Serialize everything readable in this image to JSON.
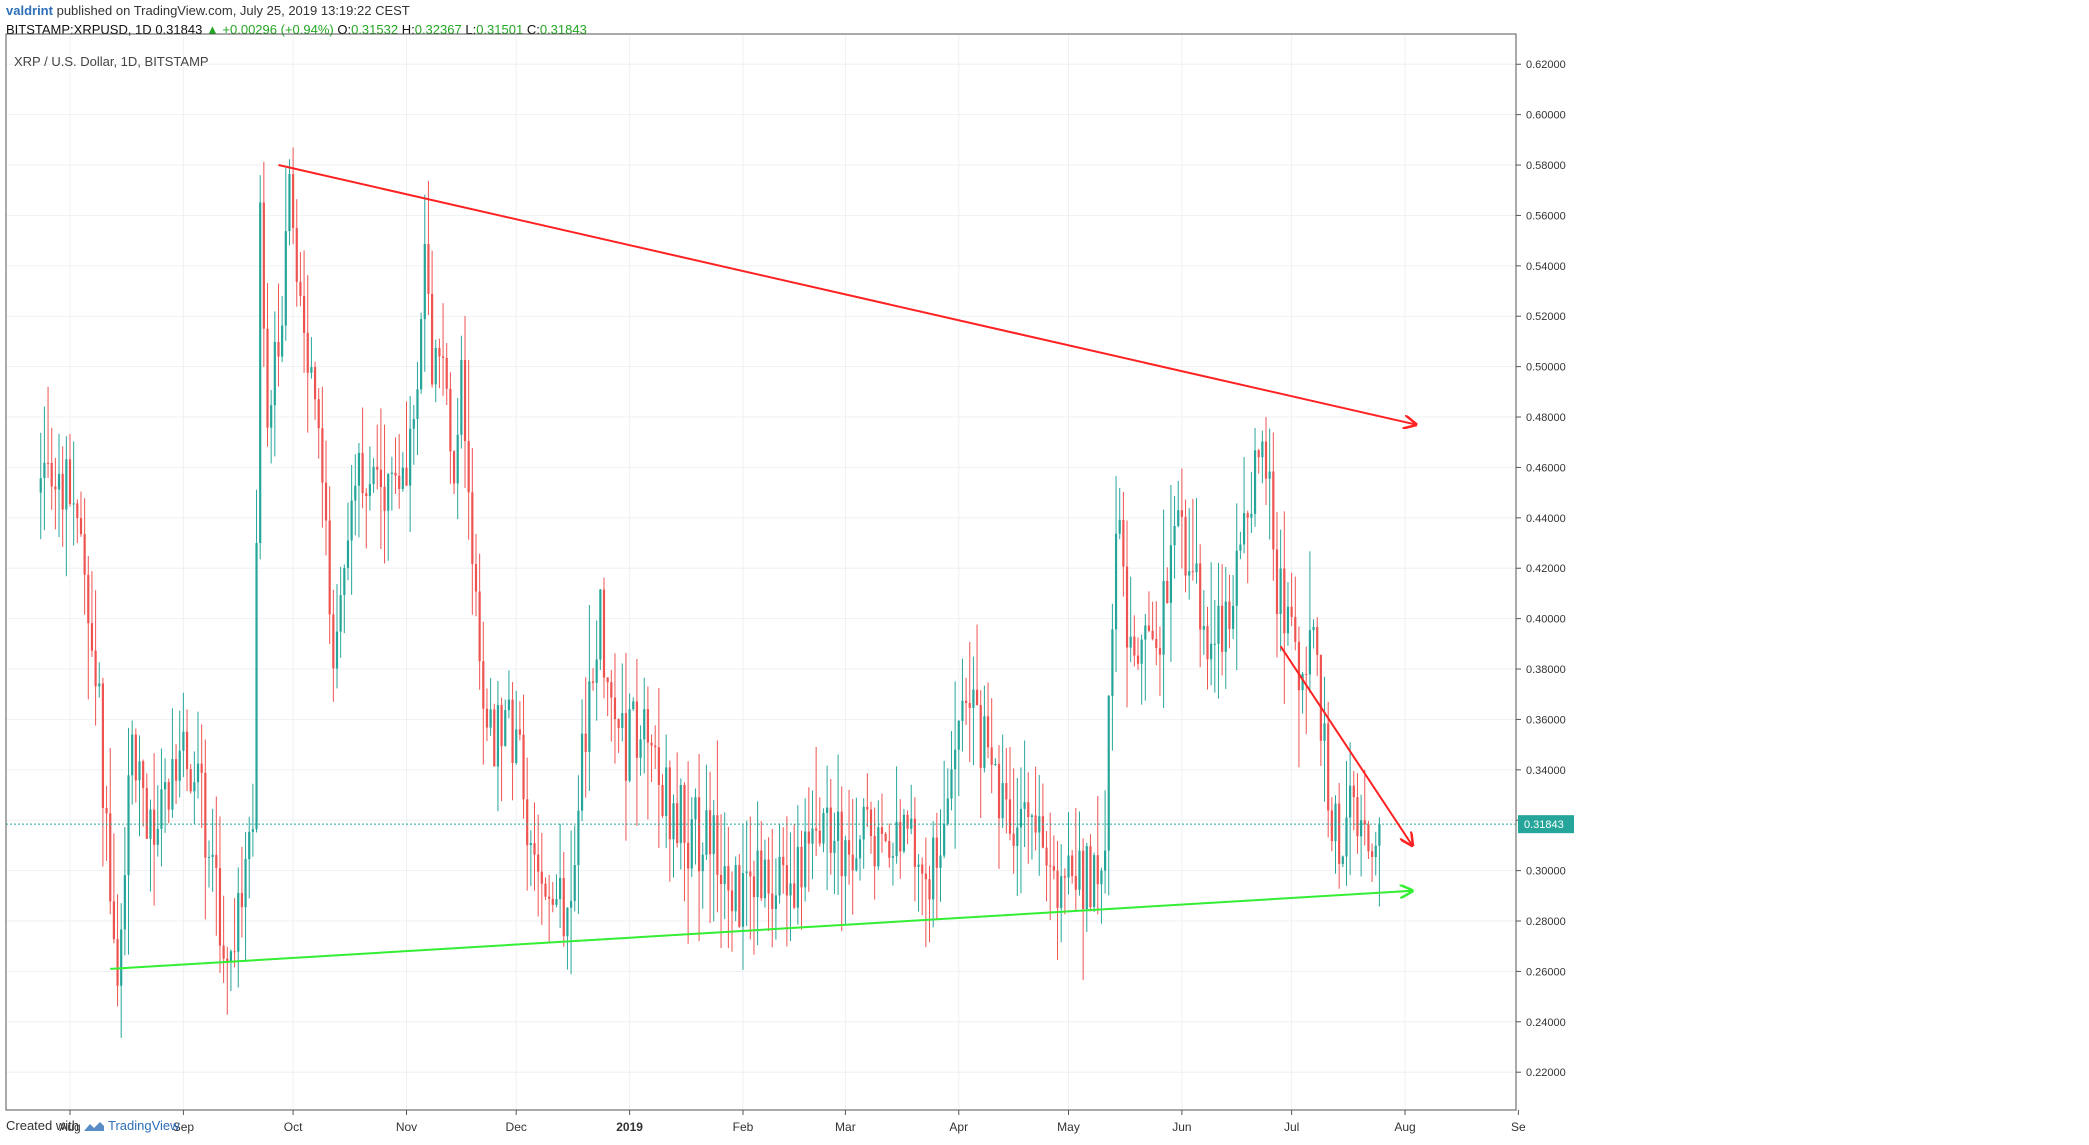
{
  "header": {
    "author": "valdrint",
    "published_text": "published on TradingView.com, July 25, 2019 13:19:22 CEST",
    "symbol": "BITSTAMP:XRPUSD, 1D",
    "last": "0.31843",
    "change": "▲ +0.00296 (+0.94%)",
    "o_label": "O:",
    "o_value": "0.31532",
    "h_label": "H:",
    "h_value": "0.32367",
    "l_label": "L:",
    "l_value": "0.31501",
    "c_label": "C:",
    "c_value": "0.31843"
  },
  "pane_title": "XRP / U.S. Dollar, 1D, BITSTAMP",
  "footer": {
    "created_with": "Created with",
    "brand": "TradingView"
  },
  "colors": {
    "up": "#26a69a",
    "down": "#ef5350",
    "resistance": "#ff2222",
    "support": "#33ee33",
    "price_line": "#26a69a",
    "grid": "#eef1f4"
  },
  "chart_data": {
    "type": "candlestick",
    "title": "XRP / U.S. Dollar, 1D, BITSTAMP",
    "ylim": [
      0.205,
      0.632
    ],
    "y_ticks": [
      "0.62000",
      "0.60000",
      "0.58000",
      "0.56000",
      "0.54000",
      "0.52000",
      "0.50000",
      "0.48000",
      "0.46000",
      "0.44000",
      "0.42000",
      "0.40000",
      "0.38000",
      "0.36000",
      "0.34000",
      "0.32000",
      "0.30000",
      "0.28000",
      "0.26000",
      "0.24000",
      "0.22000"
    ],
    "x_ticks": [
      {
        "label": "Aug",
        "date": "2018-08-01"
      },
      {
        "label": "Sep",
        "date": "2018-09-01"
      },
      {
        "label": "Oct",
        "date": "2018-10-01"
      },
      {
        "label": "Nov",
        "date": "2018-11-01"
      },
      {
        "label": "Dec",
        "date": "2018-12-01"
      },
      {
        "label": "2019",
        "date": "2019-01-01",
        "bold": true
      },
      {
        "label": "Feb",
        "date": "2019-02-01"
      },
      {
        "label": "Mar",
        "date": "2019-03-01"
      },
      {
        "label": "Apr",
        "date": "2019-04-01"
      },
      {
        "label": "May",
        "date": "2019-05-01"
      },
      {
        "label": "Jun",
        "date": "2019-06-01"
      },
      {
        "label": "Jul",
        "date": "2019-07-01"
      },
      {
        "label": "Aug",
        "date": "2019-08-01"
      },
      {
        "label": "Se",
        "date": "2019-09-01"
      }
    ],
    "first_date": "2018-07-24",
    "last_price": 0.31843,
    "last_price_label": "0.31843",
    "close_path": [
      [
        "2018-07-24",
        0.45
      ],
      [
        "2018-07-29",
        0.455
      ],
      [
        "2018-08-04",
        0.44
      ],
      [
        "2018-08-08",
        0.38
      ],
      [
        "2018-08-10",
        0.34
      ],
      [
        "2018-08-13",
        0.28
      ],
      [
        "2018-08-14",
        0.27
      ],
      [
        "2018-08-16",
        0.29
      ],
      [
        "2018-08-18",
        0.35
      ],
      [
        "2018-08-20",
        0.33
      ],
      [
        "2018-08-24",
        0.32
      ],
      [
        "2018-08-28",
        0.33
      ],
      [
        "2018-09-01",
        0.34
      ],
      [
        "2018-09-05",
        0.34
      ],
      [
        "2018-09-09",
        0.3
      ],
      [
        "2018-09-11",
        0.28
      ],
      [
        "2018-09-14",
        0.265
      ],
      [
        "2018-09-17",
        0.28
      ],
      [
        "2018-09-20",
        0.32
      ],
      [
        "2018-09-21",
        0.44
      ],
      [
        "2018-09-22",
        0.56
      ],
      [
        "2018-09-23",
        0.52
      ],
      [
        "2018-09-24",
        0.48
      ],
      [
        "2018-09-28",
        0.52
      ],
      [
        "2018-09-30",
        0.58
      ],
      [
        "2018-10-02",
        0.53
      ],
      [
        "2018-10-05",
        0.5
      ],
      [
        "2018-10-08",
        0.48
      ],
      [
        "2018-10-10",
        0.43
      ],
      [
        "2018-10-12",
        0.38
      ],
      [
        "2018-10-15",
        0.42
      ],
      [
        "2018-10-17",
        0.45
      ],
      [
        "2018-10-20",
        0.46
      ],
      [
        "2018-10-25",
        0.45
      ],
      [
        "2018-10-31",
        0.455
      ],
      [
        "2018-11-04",
        0.5
      ],
      [
        "2018-11-06",
        0.55
      ],
      [
        "2018-11-08",
        0.5
      ],
      [
        "2018-11-11",
        0.51
      ],
      [
        "2018-11-14",
        0.46
      ],
      [
        "2018-11-16",
        0.5
      ],
      [
        "2018-11-19",
        0.43
      ],
      [
        "2018-11-21",
        0.39
      ],
      [
        "2018-11-23",
        0.36
      ],
      [
        "2018-11-25",
        0.35
      ],
      [
        "2018-11-28",
        0.37
      ],
      [
        "2018-12-01",
        0.35
      ],
      [
        "2018-12-04",
        0.32
      ],
      [
        "2018-12-07",
        0.3
      ],
      [
        "2018-12-10",
        0.29
      ],
      [
        "2018-12-14",
        0.285
      ],
      [
        "2018-12-17",
        0.31
      ],
      [
        "2018-12-19",
        0.35
      ],
      [
        "2018-12-21",
        0.37
      ],
      [
        "2018-12-24",
        0.4
      ],
      [
        "2018-12-27",
        0.36
      ],
      [
        "2018-12-31",
        0.35
      ],
      [
        "2019-01-04",
        0.36
      ],
      [
        "2019-01-07",
        0.36
      ],
      [
        "2019-01-10",
        0.33
      ],
      [
        "2019-01-15",
        0.32
      ],
      [
        "2019-01-20",
        0.315
      ],
      [
        "2019-01-25",
        0.31
      ],
      [
        "2019-01-28",
        0.3
      ],
      [
        "2019-01-31",
        0.29
      ],
      [
        "2019-02-05",
        0.3
      ],
      [
        "2019-02-08",
        0.29
      ],
      [
        "2019-02-12",
        0.3
      ],
      [
        "2019-02-17",
        0.3
      ],
      [
        "2019-02-20",
        0.32
      ],
      [
        "2019-02-24",
        0.31
      ],
      [
        "2019-02-28",
        0.31
      ],
      [
        "2019-03-05",
        0.315
      ],
      [
        "2019-03-10",
        0.31
      ],
      [
        "2019-03-15",
        0.315
      ],
      [
        "2019-03-20",
        0.31
      ],
      [
        "2019-03-24",
        0.3
      ],
      [
        "2019-03-27",
        0.305
      ],
      [
        "2019-04-02",
        0.36
      ],
      [
        "2019-04-05",
        0.36
      ],
      [
        "2019-04-09",
        0.35
      ],
      [
        "2019-04-12",
        0.33
      ],
      [
        "2019-04-15",
        0.32
      ],
      [
        "2019-04-20",
        0.325
      ],
      [
        "2019-04-24",
        0.31
      ],
      [
        "2019-04-26",
        0.295
      ],
      [
        "2019-04-28",
        0.29
      ],
      [
        "2019-05-02",
        0.3
      ],
      [
        "2019-05-06",
        0.3
      ],
      [
        "2019-05-09",
        0.3
      ],
      [
        "2019-05-11",
        0.32
      ],
      [
        "2019-05-13",
        0.4
      ],
      [
        "2019-05-14",
        0.44
      ],
      [
        "2019-05-16",
        0.42
      ],
      [
        "2019-05-19",
        0.38
      ],
      [
        "2019-05-22",
        0.39
      ],
      [
        "2019-05-25",
        0.38
      ],
      [
        "2019-05-28",
        0.41
      ],
      [
        "2019-05-31",
        0.44
      ],
      [
        "2019-06-03",
        0.42
      ],
      [
        "2019-06-06",
        0.4
      ],
      [
        "2019-06-09",
        0.39
      ],
      [
        "2019-06-12",
        0.4
      ],
      [
        "2019-06-15",
        0.41
      ],
      [
        "2019-06-18",
        0.43
      ],
      [
        "2019-06-22",
        0.47
      ],
      [
        "2019-06-25",
        0.46
      ],
      [
        "2019-06-27",
        0.41
      ],
      [
        "2019-06-30",
        0.4
      ],
      [
        "2019-07-03",
        0.39
      ],
      [
        "2019-07-07",
        0.39
      ],
      [
        "2019-07-09",
        0.37
      ],
      [
        "2019-07-11",
        0.33
      ],
      [
        "2019-07-14",
        0.3
      ],
      [
        "2019-07-16",
        0.31
      ],
      [
        "2019-07-18",
        0.33
      ],
      [
        "2019-07-20",
        0.32
      ],
      [
        "2019-07-22",
        0.315
      ],
      [
        "2019-07-25",
        0.31843
      ]
    ],
    "trendlines": [
      {
        "name": "resistance",
        "from": [
          "2018-09-27",
          0.58
        ],
        "to": [
          "2019-08-04",
          0.477
        ],
        "color": "#ff2222",
        "arrow": true
      },
      {
        "name": "support",
        "from": [
          "2018-08-12",
          0.261
        ],
        "to": [
          "2019-08-03",
          0.292
        ],
        "color": "#33ee33",
        "arrow": true
      },
      {
        "name": "short-term-resistance",
        "from": [
          "2019-06-28",
          0.389
        ],
        "to": [
          "2019-08-03",
          0.31
        ],
        "color": "#ff2222",
        "arrow": true
      }
    ]
  }
}
